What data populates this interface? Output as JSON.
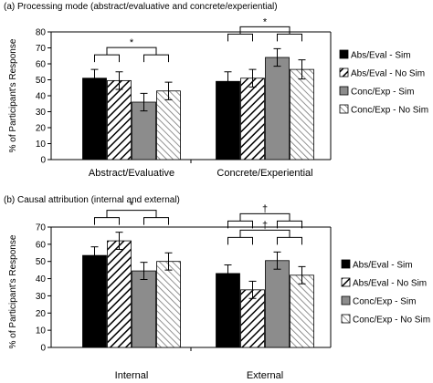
{
  "colors": {
    "sim_abs": "#000000",
    "sim_conc": "#8c8c8c",
    "hatch": "#000000",
    "background": "#ffffff"
  },
  "chart_data": [
    {
      "type": "bar",
      "title": "(a) Processing mode (abstract/evaluative and concrete/experiential)",
      "ylabel": "% of Participant's Response",
      "xlabel": "",
      "ylim": [
        0,
        80
      ],
      "yticks": [
        0,
        10,
        20,
        30,
        40,
        50,
        60,
        70,
        80
      ],
      "categories": [
        "Abstract/Evaluative",
        "Concrete/Experiential"
      ],
      "series": [
        {
          "name": "Abs/Eval - Sim",
          "pattern": "solid-black",
          "values": [
            51,
            49
          ],
          "errors": [
            5.5,
            6
          ]
        },
        {
          "name": "Abs/Eval - No Sim",
          "pattern": "hatch-black",
          "values": [
            49.5,
            51
          ],
          "errors": [
            5.5,
            5.5
          ]
        },
        {
          "name": "Conc/Exp - Sim",
          "pattern": "solid-gray",
          "values": [
            36,
            64
          ],
          "errors": [
            5.5,
            5.5
          ]
        },
        {
          "name": "Conc/Exp - No Sim",
          "pattern": "hatch-light",
          "values": [
            43,
            56.5
          ],
          "errors": [
            5.5,
            6
          ]
        }
      ],
      "annotations": [
        {
          "category": 0,
          "symbol": "*",
          "levels": 1
        },
        {
          "category": 1,
          "symbol": "*",
          "levels": 1
        }
      ],
      "legend_position": "right",
      "grid": false
    },
    {
      "type": "bar",
      "title": "(b) Causal attribution (internal and external)",
      "ylabel": "% of Participant's Response",
      "xlabel": "",
      "ylim": [
        0,
        70
      ],
      "yticks": [
        0,
        10,
        20,
        30,
        40,
        50,
        60,
        70
      ],
      "categories": [
        "Internal",
        "External"
      ],
      "series": [
        {
          "name": "Abs/Eval - Sim",
          "pattern": "solid-black",
          "values": [
            53.5,
            43
          ],
          "errors": [
            5,
            5
          ]
        },
        {
          "name": "Abs/Eval - No Sim",
          "pattern": "hatch-black",
          "values": [
            62,
            33.5
          ],
          "errors": [
            5,
            5
          ]
        },
        {
          "name": "Conc/Exp - Sim",
          "pattern": "solid-gray",
          "values": [
            44.5,
            50.5
          ],
          "errors": [
            5,
            5
          ]
        },
        {
          "name": "Conc/Exp - No Sim",
          "pattern": "hatch-light",
          "values": [
            50,
            42
          ],
          "errors": [
            5,
            5
          ]
        }
      ],
      "annotations": [
        {
          "category": 0,
          "symbol": "*",
          "levels": 1
        },
        {
          "category": 1,
          "symbol": "†",
          "levels": 2
        }
      ],
      "legend_position": "right",
      "grid": false
    }
  ]
}
